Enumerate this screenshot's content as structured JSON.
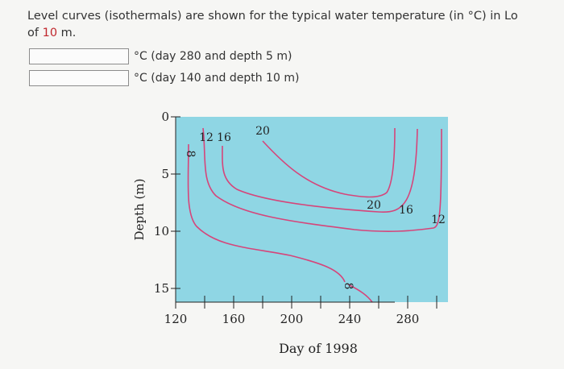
{
  "question": {
    "text_before": "Level curves (isothermals) are shown for the typical water temperature (in °C) in Lo",
    "text_line2_prefix": "of ",
    "depth_value": "10",
    "text_line2_suffix": " m."
  },
  "answers": [
    {
      "value": "",
      "label": "°C (day 280 and depth 5 m)"
    },
    {
      "value": "",
      "label": "°C (day 140 and depth 10 m)"
    }
  ],
  "chart_data": {
    "type": "contour",
    "xlabel": "Day of 1998",
    "ylabel": "Depth (m)",
    "x_ticks": [
      "120",
      "160",
      "200",
      "240",
      "280"
    ],
    "y_ticks": [
      "0",
      "5",
      "10",
      "15"
    ],
    "xlim": [
      120,
      300
    ],
    "ylim": [
      0,
      16
    ],
    "fill_color": "#8fd6e4",
    "curve_color": "#d6457a",
    "contour_labels": [
      "8",
      "12",
      "16",
      "20",
      "20",
      "16",
      "12",
      "8"
    ]
  }
}
